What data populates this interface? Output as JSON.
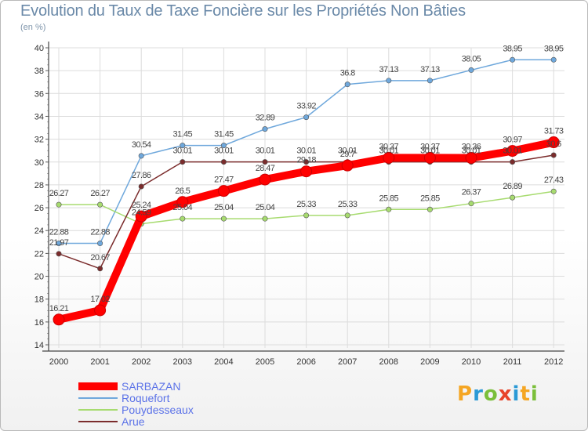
{
  "title": "Evolution du Taux de Taxe Foncière sur les Propriétés Non Bâties",
  "subtitle": "(en %)",
  "logo": {
    "text": "Proxiti",
    "letters": [
      "P",
      "r",
      "o",
      "x",
      "i",
      "t",
      "i"
    ],
    "colors": [
      "#f5a623",
      "#2b9ad6",
      "#7bbf3a",
      "#e8442a",
      "#2b9ad6",
      "#f5a623",
      "#7bbf3a"
    ]
  },
  "chart_data": {
    "type": "line",
    "title": "Evolution du Taux de Taxe Foncière sur les Propriétés Non Bâties",
    "ylabel": "(en %)",
    "xlabel": "",
    "x": [
      "2000",
      "2001",
      "2002",
      "2003",
      "2004",
      "2005",
      "2006",
      "2007",
      "2008",
      "2009",
      "2010",
      "2011",
      "2012"
    ],
    "ylim": [
      14,
      40
    ],
    "yticks": [
      "14",
      "16",
      "18",
      "20",
      "22",
      "24",
      "26",
      "28",
      "30",
      "32",
      "34",
      "36",
      "38",
      "40"
    ],
    "grid": true,
    "legend_position": "bottom-left",
    "series": [
      {
        "name": "SARBAZAN",
        "color": "#ff0000",
        "values": [
          16.21,
          17.02,
          25.24,
          26.5,
          27.47,
          28.47,
          29.18,
          29.7,
          30.37,
          30.37,
          30.36,
          30.97,
          31.73
        ],
        "labels": [
          "16.21",
          "17.02",
          "25.24",
          "26.5",
          "27.47",
          "28.47",
          "29.18",
          "29.7",
          "30.37",
          "30.37",
          "30.36",
          "30.97",
          "31.73"
        ]
      },
      {
        "name": "Roquefort",
        "color": "#6fa8dc",
        "values": [
          22.88,
          22.88,
          30.54,
          31.45,
          31.45,
          32.89,
          33.92,
          36.8,
          37.13,
          37.13,
          38.05,
          38.95,
          38.95
        ],
        "labels": [
          "22.88",
          "22.88",
          "30.54",
          "31.45",
          "31.45",
          "32.89",
          "33.92",
          "36.8",
          "37.13",
          "37.13",
          "38.05",
          "38.95",
          "38.95"
        ]
      },
      {
        "name": "Pouydesseaux",
        "color": "#a7db6f",
        "values": [
          26.27,
          26.27,
          24.59,
          25.04,
          25.04,
          25.04,
          25.33,
          25.33,
          25.85,
          25.85,
          26.37,
          26.89,
          27.43
        ],
        "labels": [
          "26.27",
          "26.27",
          "24.59",
          "25.04",
          "25.04",
          "25.04",
          "25.33",
          "25.33",
          "25.85",
          "25.85",
          "26.37",
          "26.89",
          "27.43"
        ]
      },
      {
        "name": "Arue",
        "color": "#7b2c2c",
        "values": [
          21.97,
          20.67,
          27.86,
          30.01,
          30.01,
          30.01,
          30.01,
          30.01,
          30.01,
          30.01,
          30.01,
          30.01,
          30.6
        ],
        "labels": [
          "21.97",
          "20.67",
          "27.86",
          "30.01",
          "30.01",
          "30.01",
          "30.01",
          "30.01",
          "30.01",
          "30.01",
          "30.01",
          "30.01",
          "30.6"
        ]
      }
    ]
  }
}
